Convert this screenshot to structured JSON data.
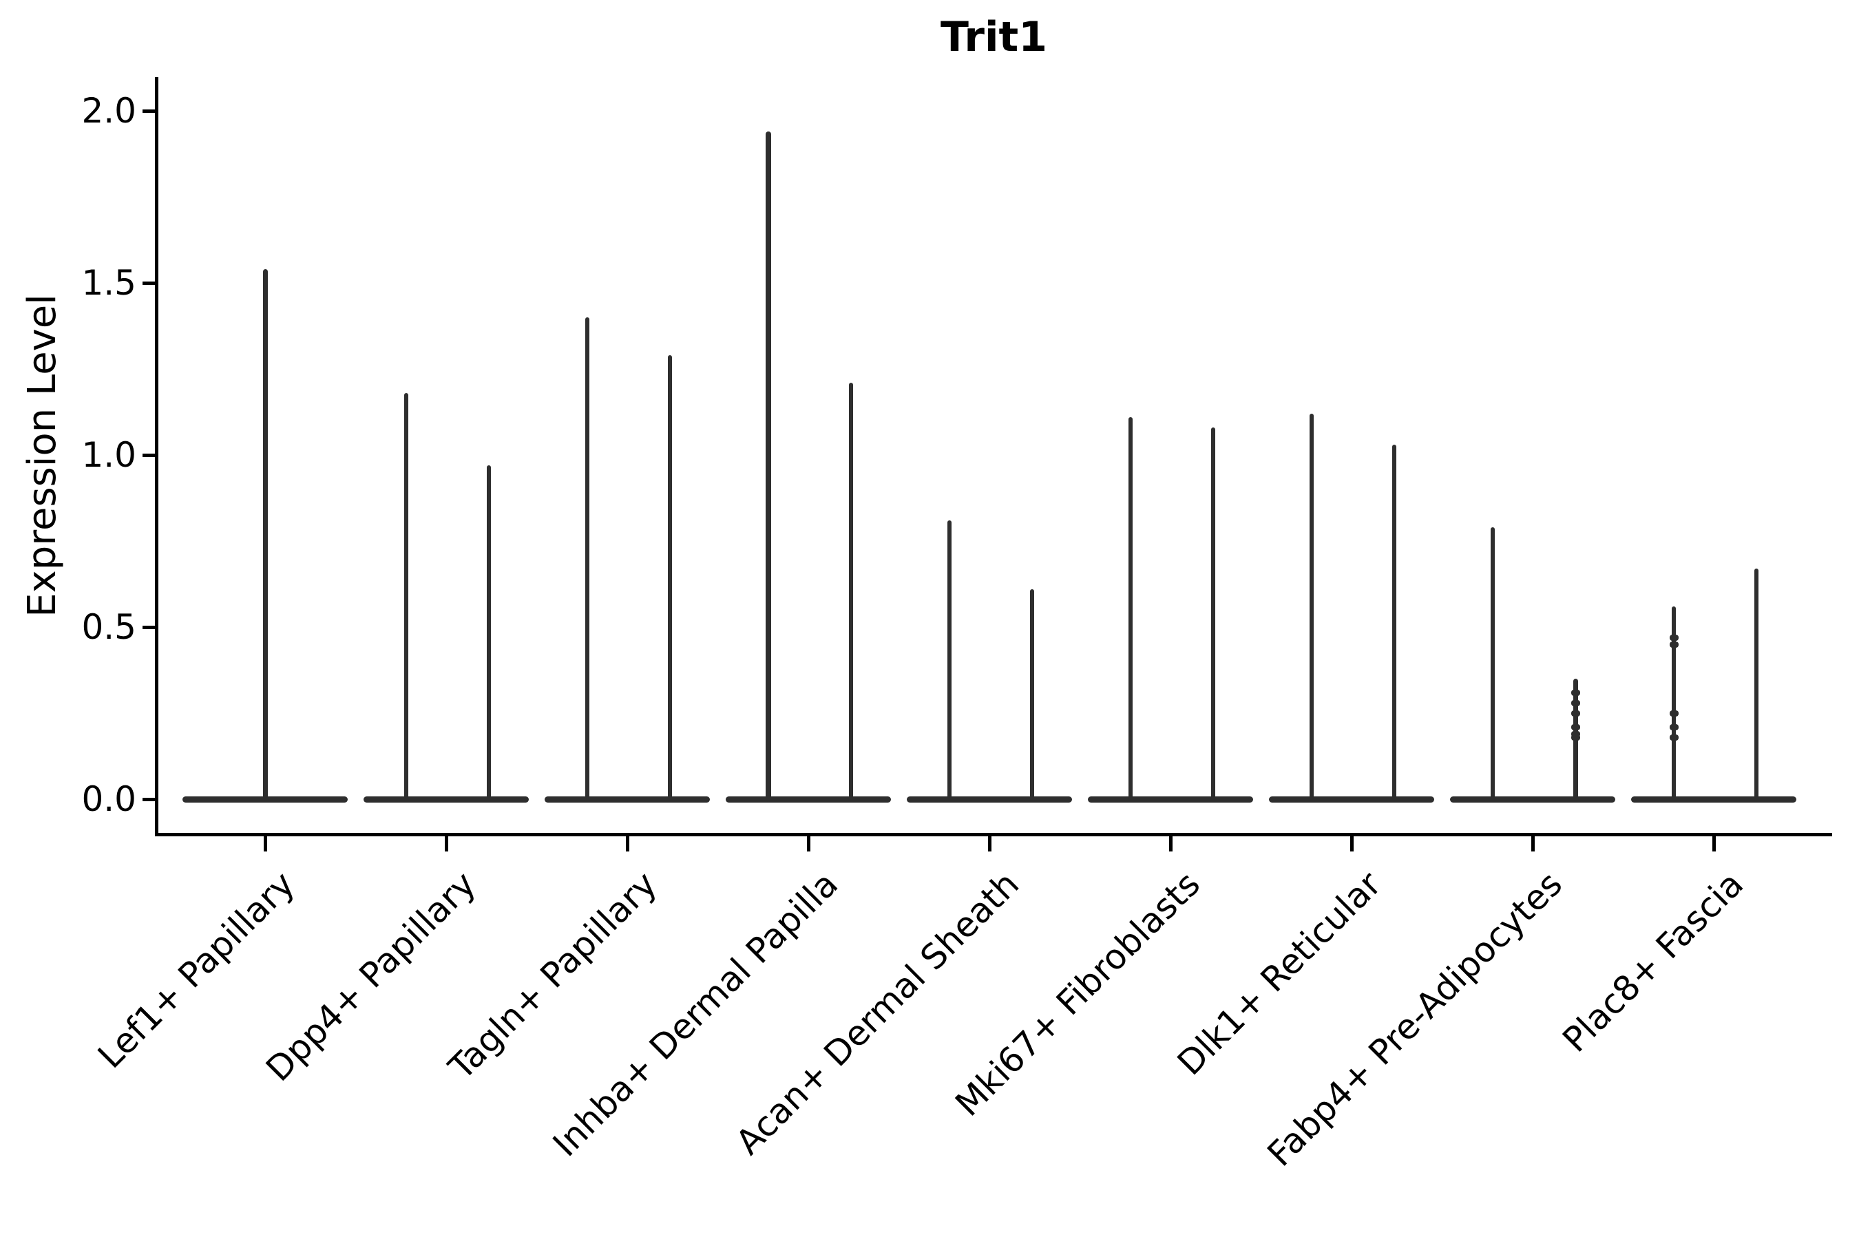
{
  "title": "Trit1",
  "axes": {
    "ylabel": "Expression Level",
    "ytick_labels": [
      "0.0",
      "0.5",
      "1.0",
      "1.5",
      "2.0"
    ]
  },
  "colors": {
    "violin": "#2e2e2e",
    "axis": "#000000",
    "text": "#000000",
    "background": "#ffffff"
  },
  "chart_data": {
    "type": "violin",
    "title": "Trit1",
    "xlabel": "",
    "ylabel": "Expression Level",
    "ylim": [
      0.0,
      2.05
    ],
    "yticks": [
      0.0,
      0.5,
      1.0,
      1.5,
      2.0
    ],
    "grid": false,
    "legend": "none",
    "description": "Each cell-type violin collapses to a flat horizontal bar at expression 0 (most cells zero) with thin vertical density spikes reaching the maximum expression value; categories 2-9 show a pair of spikes, category 1 a single centered spike.",
    "baseline_value": 0.0,
    "categories": [
      "Lef1+ Papillary",
      "Dpp4+ Papillary",
      "Tagln+ Papillary",
      "Inhba+ Dermal Papilla",
      "Acan+ Dermal Sheath",
      "Mki67+ Fibroblasts",
      "Dlk1+ Reticular",
      "Fabp4+ Pre-Adipocytes",
      "Plac8+ Fascia"
    ],
    "violins": [
      {
        "category": "Lef1+ Papillary",
        "spikes": [
          {
            "pos": "center",
            "max": 1.54,
            "w": 7,
            "dots": []
          }
        ]
      },
      {
        "category": "Dpp4+ Papillary",
        "spikes": [
          {
            "pos": "left",
            "max": 1.18,
            "w": 6,
            "dots": []
          },
          {
            "pos": "right",
            "max": 0.97,
            "w": 6,
            "dots": []
          }
        ]
      },
      {
        "category": "Tagln+ Papillary",
        "spikes": [
          {
            "pos": "left",
            "max": 1.4,
            "w": 6,
            "dots": []
          },
          {
            "pos": "right",
            "max": 1.29,
            "w": 6,
            "dots": []
          }
        ]
      },
      {
        "category": "Inhba+ Dermal Papilla",
        "spikes": [
          {
            "pos": "left",
            "max": 1.94,
            "w": 8,
            "dots": []
          },
          {
            "pos": "right",
            "max": 1.21,
            "w": 6,
            "dots": []
          }
        ]
      },
      {
        "category": "Acan+ Dermal Sheath",
        "spikes": [
          {
            "pos": "left",
            "max": 0.81,
            "w": 6,
            "dots": []
          },
          {
            "pos": "right",
            "max": 0.61,
            "w": 6,
            "dots": []
          }
        ]
      },
      {
        "category": "Mki67+ Fibroblasts",
        "spikes": [
          {
            "pos": "left",
            "max": 1.11,
            "w": 6,
            "dots": []
          },
          {
            "pos": "right",
            "max": 1.08,
            "w": 6,
            "dots": []
          }
        ]
      },
      {
        "category": "Dlk1+ Reticular",
        "spikes": [
          {
            "pos": "left",
            "max": 1.12,
            "w": 6,
            "dots": []
          },
          {
            "pos": "right",
            "max": 1.03,
            "w": 6,
            "dots": []
          }
        ]
      },
      {
        "category": "Fabp4+ Pre-Adipocytes",
        "spikes": [
          {
            "pos": "left",
            "max": 0.79,
            "w": 6,
            "dots": []
          },
          {
            "pos": "right",
            "max": 0.35,
            "w": 7,
            "dots": [
              0.31,
              0.28,
              0.25,
              0.21,
              0.19,
              0.18
            ]
          }
        ]
      },
      {
        "category": "Plac8+ Fascia",
        "spikes": [
          {
            "pos": "left",
            "max": 0.56,
            "w": 6,
            "dots": [
              0.47,
              0.45,
              0.25,
              0.21,
              0.18
            ]
          },
          {
            "pos": "right",
            "max": 0.67,
            "w": 6,
            "dots": []
          }
        ]
      }
    ]
  }
}
